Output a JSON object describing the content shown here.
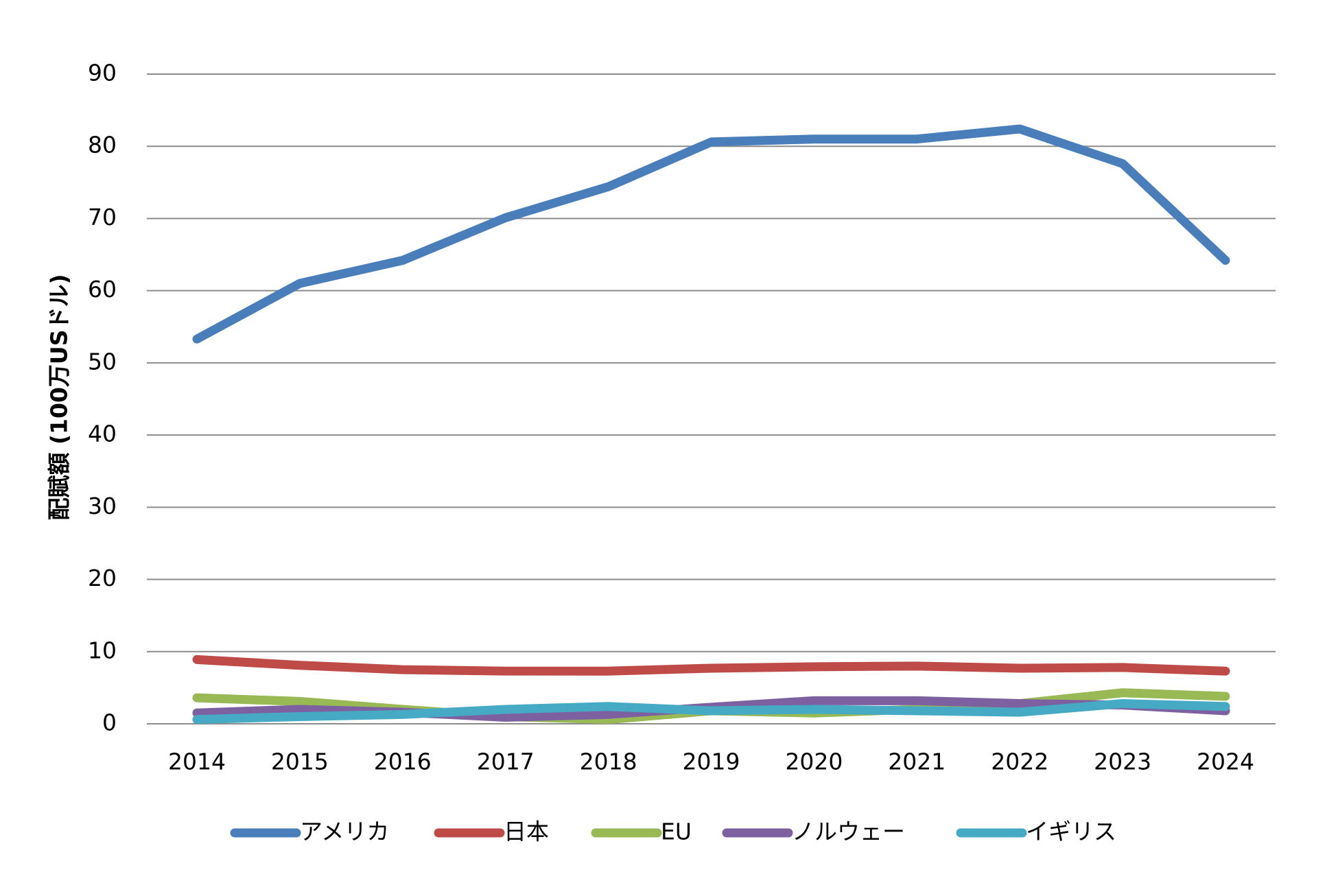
{
  "chart_data": {
    "type": "line",
    "y_label": "配賦額 (100万USドル)",
    "x": [
      "2014",
      "2015",
      "2016",
      "2017",
      "2018",
      "2019",
      "2020",
      "2021",
      "2022",
      "2023",
      "2024"
    ],
    "series": [
      {
        "name": "アメリカ",
        "color": "#4a7ebb",
        "values": [
          53.3,
          61,
          64.2,
          70.1,
          74.4,
          80.6,
          81,
          81,
          82.4,
          77.6,
          64.2
        ]
      },
      {
        "name": "日本",
        "color": "#be4b48",
        "values": [
          8.9,
          8.1,
          7.5,
          7.3,
          7.3,
          7.7,
          7.9,
          8.0,
          7.7,
          7.8,
          7.3
        ]
      },
      {
        "name": "EU",
        "color": "#98b954",
        "values": [
          3.6,
          3.1,
          2.0,
          1.0,
          0.6,
          1.8,
          1.5,
          2.0,
          2.8,
          4.3,
          3.8
        ]
      },
      {
        "name": "ノルウェー",
        "color": "#7d60a0",
        "values": [
          1.5,
          2.0,
          1.6,
          0.9,
          1.3,
          2.3,
          3.2,
          3.2,
          2.8,
          2.6,
          1.8
        ]
      },
      {
        "name": "イギリス",
        "color": "#46aac5",
        "values": [
          0.6,
          1.0,
          1.3,
          2.0,
          2.4,
          1.8,
          2.0,
          1.8,
          1.6,
          2.8,
          2.4
        ]
      }
    ],
    "ylim": [
      0,
      90
    ],
    "yticks": [
      0,
      10,
      20,
      30,
      40,
      50,
      60,
      70,
      80,
      90
    ],
    "grid": true,
    "legend": "bottom"
  }
}
